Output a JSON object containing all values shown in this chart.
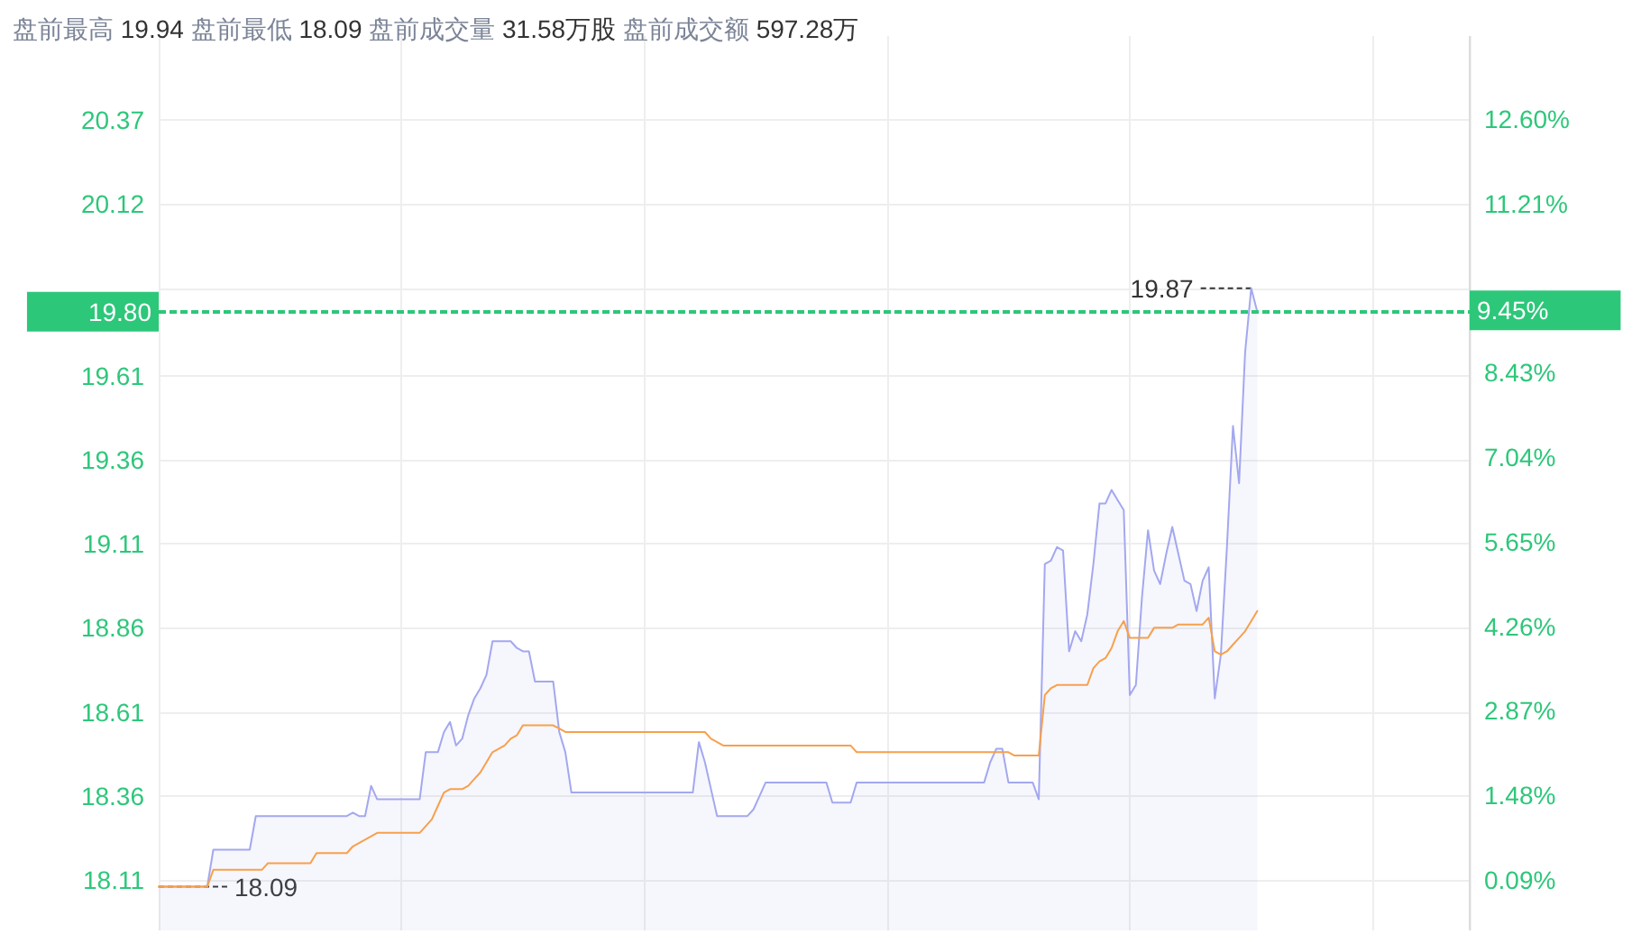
{
  "chart_data": {
    "type": "line",
    "title": "盘前最高 19.94 盘前最低 18.09 盘前成交量 31.58万股 盘前成交额 597.28万",
    "categories": [
      null,
      null,
      null,
      null,
      null,
      null,
      null,
      null,
      null,
      null,
      null,
      null,
      null,
      null,
      null,
      null,
      null,
      null,
      null,
      null,
      null,
      null,
      null,
      null,
      null,
      null,
      null,
      null,
      null,
      null,
      null,
      null,
      null,
      null,
      null,
      null,
      null,
      null,
      null,
      null,
      null,
      null,
      null,
      null,
      null,
      null,
      null,
      null,
      null,
      null,
      null,
      null,
      null,
      null,
      null,
      null,
      null,
      null,
      null,
      null,
      null,
      null,
      null,
      null,
      null,
      null,
      null,
      null,
      null,
      null,
      null,
      null,
      null,
      null,
      null,
      null,
      null,
      null,
      null,
      null,
      null,
      null,
      null,
      null,
      null,
      null,
      null,
      null,
      null,
      null,
      null,
      null,
      null,
      null,
      null,
      null,
      null,
      null,
      null,
      null,
      null,
      null,
      null,
      null,
      null,
      null,
      null,
      null,
      null,
      null,
      null,
      null,
      null,
      null,
      null,
      null,
      null,
      null,
      null,
      null,
      null,
      null,
      null,
      null,
      null,
      null,
      null,
      null,
      null,
      null,
      null,
      null,
      null,
      null,
      null,
      null,
      null,
      null,
      null,
      null,
      null,
      null,
      null,
      null,
      null,
      null,
      null,
      null,
      null,
      null,
      null,
      null,
      null,
      null,
      null,
      null,
      null,
      null,
      null,
      null,
      null,
      null,
      null,
      null,
      null,
      null,
      null,
      null,
      null,
      null,
      null,
      null,
      null,
      null,
      null,
      null,
      null,
      null,
      null,
      null,
      null,
      null
    ],
    "series": [
      {
        "type": "area",
        "color": "#a3a8ef",
        "values": [
          18.09,
          18.09,
          18.09,
          18.09,
          18.09,
          18.09,
          18.09,
          18.09,
          18.09,
          18.2,
          18.2,
          18.2,
          18.2,
          18.2,
          18.2,
          18.2,
          18.3,
          18.3,
          18.3,
          18.3,
          18.3,
          18.3,
          18.3,
          18.3,
          18.3,
          18.3,
          18.3,
          18.3,
          18.3,
          18.3,
          18.3,
          18.3,
          18.31,
          18.3,
          18.3,
          18.39,
          18.35,
          18.35,
          18.35,
          18.35,
          18.35,
          18.35,
          18.35,
          18.35,
          18.49,
          18.49,
          18.49,
          18.55,
          18.58,
          18.51,
          18.53,
          18.6,
          18.65,
          18.68,
          18.72,
          18.82,
          18.82,
          18.82,
          18.82,
          18.8,
          18.79,
          18.79,
          18.7,
          18.7,
          18.7,
          18.7,
          18.55,
          18.49,
          18.37,
          18.37,
          18.37,
          18.37,
          18.37,
          18.37,
          18.37,
          18.37,
          18.37,
          18.37,
          18.37,
          18.37,
          18.37,
          18.37,
          18.37,
          18.37,
          18.37,
          18.37,
          18.37,
          18.37,
          18.37,
          18.52,
          18.46,
          18.38,
          18.3,
          18.3,
          18.3,
          18.3,
          18.3,
          18.3,
          18.32,
          18.36,
          18.4,
          18.4,
          18.4,
          18.4,
          18.4,
          18.4,
          18.4,
          18.4,
          18.4,
          18.4,
          18.4,
          18.34,
          18.34,
          18.34,
          18.34,
          18.4,
          18.4,
          18.4,
          18.4,
          18.4,
          18.4,
          18.4,
          18.4,
          18.4,
          18.4,
          18.4,
          18.4,
          18.4,
          18.4,
          18.4,
          18.4,
          18.4,
          18.4,
          18.4,
          18.4,
          18.4,
          18.4,
          18.46,
          18.5,
          18.5,
          18.4,
          18.4,
          18.4,
          18.4,
          18.4,
          18.35,
          19.05,
          19.06,
          19.1,
          19.09,
          18.79,
          18.85,
          18.82,
          18.9,
          19.05,
          19.23,
          19.23,
          19.27,
          19.24,
          19.21,
          18.66,
          18.69,
          18.95,
          19.15,
          19.03,
          18.99,
          19.08,
          19.16,
          19.08,
          19.0,
          18.99,
          18.91,
          19.0,
          19.04,
          18.65,
          18.78,
          19.1,
          19.46,
          19.29,
          19.68,
          19.87,
          19.8
        ]
      },
      {
        "color": "#f7a04b",
        "values": [
          18.09,
          18.09,
          18.09,
          18.09,
          18.09,
          18.09,
          18.09,
          18.09,
          18.09,
          18.14,
          18.14,
          18.14,
          18.14,
          18.14,
          18.14,
          18.14,
          18.14,
          18.14,
          18.16,
          18.16,
          18.16,
          18.16,
          18.16,
          18.16,
          18.16,
          18.16,
          18.19,
          18.19,
          18.19,
          18.19,
          18.19,
          18.19,
          18.21,
          18.22,
          18.23,
          18.24,
          18.25,
          18.25,
          18.25,
          18.25,
          18.25,
          18.25,
          18.25,
          18.25,
          18.27,
          18.29,
          18.33,
          18.37,
          18.38,
          18.38,
          18.38,
          18.39,
          18.41,
          18.43,
          18.46,
          18.49,
          18.5,
          18.51,
          18.53,
          18.54,
          18.57,
          18.57,
          18.57,
          18.57,
          18.57,
          18.57,
          18.56,
          18.55,
          18.55,
          18.55,
          18.55,
          18.55,
          18.55,
          18.55,
          18.55,
          18.55,
          18.55,
          18.55,
          18.55,
          18.55,
          18.55,
          18.55,
          18.55,
          18.55,
          18.55,
          18.55,
          18.55,
          18.55,
          18.55,
          18.55,
          18.55,
          18.53,
          18.52,
          18.51,
          18.51,
          18.51,
          18.51,
          18.51,
          18.51,
          18.51,
          18.51,
          18.51,
          18.51,
          18.51,
          18.51,
          18.51,
          18.51,
          18.51,
          18.51,
          18.51,
          18.51,
          18.51,
          18.51,
          18.51,
          18.51,
          18.49,
          18.49,
          18.49,
          18.49,
          18.49,
          18.49,
          18.49,
          18.49,
          18.49,
          18.49,
          18.49,
          18.49,
          18.49,
          18.49,
          18.49,
          18.49,
          18.49,
          18.49,
          18.49,
          18.49,
          18.49,
          18.49,
          18.49,
          18.49,
          18.49,
          18.49,
          18.48,
          18.48,
          18.48,
          18.48,
          18.48,
          18.66,
          18.68,
          18.69,
          18.69,
          18.69,
          18.69,
          18.69,
          18.69,
          18.74,
          18.76,
          18.77,
          18.8,
          18.85,
          18.88,
          18.83,
          18.83,
          18.83,
          18.83,
          18.86,
          18.86,
          18.86,
          18.86,
          18.87,
          18.87,
          18.87,
          18.87,
          18.87,
          18.89,
          18.79,
          18.78,
          18.79,
          18.81,
          18.83,
          18.85,
          18.88,
          18.91
        ]
      }
    ],
    "ylim": [
      17.96,
      20.62
    ],
    "yticks": [
      18.11,
      18.36,
      18.61,
      18.86,
      19.11,
      19.36,
      19.61,
      {
        "value": 19.87,
        "label": null
      },
      20.12,
      20.37
    ],
    "y2lim": [
      -0.74,
      13.96
    ],
    "y2ticks": [
      {
        "value": 0.09,
        "label": "0.09%"
      },
      {
        "value": 1.48,
        "label": "1.48%"
      },
      {
        "value": 2.87,
        "label": "2.87%"
      },
      {
        "value": 4.26,
        "label": "4.26%"
      },
      {
        "value": 5.65,
        "label": "5.65%"
      },
      {
        "value": 7.04,
        "label": "7.04%"
      },
      {
        "value": 8.43,
        "label": "8.43%"
      },
      {
        "value": 9.83,
        "label": null
      },
      {
        "value": 11.21,
        "label": "11.21%"
      },
      {
        "value": 12.6,
        "label": "12.60%"
      }
    ],
    "ref_lines": [
      {
        "axis": "y",
        "value": 19.8,
        "label": "19.80",
        "color": "#2dc77a",
        "line_style": "dashed"
      },
      {
        "axis": "y2",
        "value": 9.45,
        "label": "9.45%",
        "color": "#2dc77a",
        "line_style": "dashed"
      }
    ],
    "annotations": [
      "19.87",
      "18.09"
    ],
    "grid": true,
    "tick_labels": "y"
  }
}
